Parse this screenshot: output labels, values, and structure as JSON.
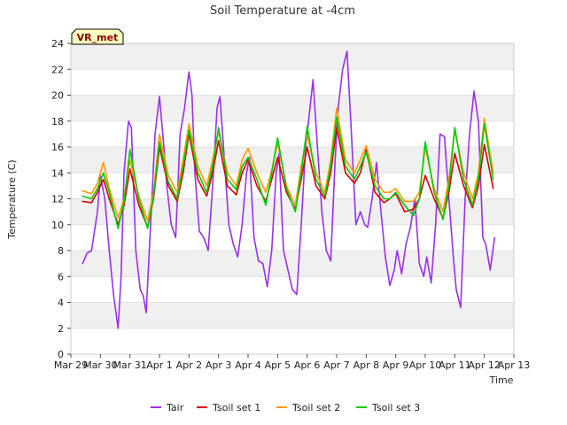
{
  "chart_data": {
    "type": "line",
    "title": "Soil Temperature at -4cm",
    "xlabel": "Time",
    "ylabel": "Temperature (C)",
    "ylim": [
      0,
      24
    ],
    "yticks": [
      0,
      2,
      4,
      6,
      8,
      10,
      12,
      14,
      16,
      18,
      20,
      22,
      24
    ],
    "xlim": [
      0,
      15
    ],
    "xticks": [
      {
        "pos": 0,
        "label": "Mar 29"
      },
      {
        "pos": 1,
        "label": "Mar 30"
      },
      {
        "pos": 2,
        "label": "Mar 31"
      },
      {
        "pos": 3,
        "label": "Apr 1"
      },
      {
        "pos": 4,
        "label": "Apr 2"
      },
      {
        "pos": 5,
        "label": "Apr 3"
      },
      {
        "pos": 6,
        "label": "Apr 4"
      },
      {
        "pos": 7,
        "label": "Apr 5"
      },
      {
        "pos": 8,
        "label": "Apr 6"
      },
      {
        "pos": 9,
        "label": "Apr 7"
      },
      {
        "pos": 10,
        "label": "Apr 8"
      },
      {
        "pos": 11,
        "label": "Apr 9"
      },
      {
        "pos": 12,
        "label": "Apr 10"
      },
      {
        "pos": 13,
        "label": "Apr 11"
      },
      {
        "pos": 14,
        "label": "Apr 12"
      },
      {
        "pos": 15,
        "label": "Apr 13"
      }
    ],
    "grid": "horizontal bands",
    "legend_position": "bottom",
    "annotation": "VR_met",
    "series": [
      {
        "name": "Tair",
        "color": "#9b30e8",
        "x": [
          0.4,
          0.55,
          0.7,
          0.9,
          1.0,
          1.15,
          1.3,
          1.45,
          1.6,
          1.7,
          1.8,
          1.95,
          2.05,
          2.2,
          2.35,
          2.45,
          2.55,
          2.7,
          2.85,
          3.0,
          3.15,
          3.25,
          3.4,
          3.55,
          3.7,
          3.85,
          4.0,
          4.1,
          4.2,
          4.35,
          4.5,
          4.65,
          4.8,
          4.95,
          5.05,
          5.2,
          5.35,
          5.5,
          5.65,
          5.8,
          5.95,
          6.05,
          6.2,
          6.35,
          6.5,
          6.65,
          6.8,
          6.95,
          7.05,
          7.2,
          7.35,
          7.5,
          7.65,
          7.8,
          7.95,
          8.05,
          8.2,
          8.35,
          8.5,
          8.65,
          8.8,
          8.95,
          9.05,
          9.2,
          9.35,
          9.5,
          9.65,
          9.8,
          9.95,
          10.05,
          10.2,
          10.35,
          10.5,
          10.65,
          10.8,
          10.95,
          11.05,
          11.2,
          11.35,
          11.5,
          11.65,
          11.8,
          11.95,
          12.05,
          12.2,
          12.35,
          12.5,
          12.65,
          12.8,
          12.95,
          13.05,
          13.2,
          13.35,
          13.5,
          13.65,
          13.8,
          13.95,
          14.05,
          14.2,
          14.35
        ],
        "y": [
          7.0,
          7.8,
          8.0,
          11.0,
          13.8,
          12.0,
          8.0,
          4.5,
          2.0,
          6.0,
          14.0,
          18.0,
          17.5,
          8.0,
          5.0,
          4.5,
          3.2,
          10.0,
          17.0,
          19.9,
          16.0,
          13.0,
          10.0,
          9.0,
          17.0,
          19.0,
          21.8,
          20.0,
          14.0,
          9.5,
          9.0,
          8.0,
          13.0,
          19.0,
          19.9,
          15.0,
          10.0,
          8.5,
          7.5,
          10.0,
          14.0,
          15.2,
          9.0,
          7.2,
          7.0,
          5.2,
          8.0,
          14.0,
          15.5,
          8.0,
          6.5,
          5.0,
          4.6,
          10.0,
          16.0,
          18.0,
          21.2,
          16.0,
          11.0,
          8.0,
          7.2,
          15.0,
          19.0,
          22.0,
          23.4,
          17.0,
          10.0,
          11.0,
          10.0,
          9.8,
          12.0,
          14.8,
          11.0,
          7.5,
          5.3,
          6.5,
          8.0,
          6.2,
          8.5,
          9.8,
          12.0,
          7.0,
          6.0,
          7.5,
          5.5,
          10.0,
          17.0,
          16.8,
          12.0,
          7.5,
          5.0,
          3.6,
          12.0,
          17.0,
          20.3,
          18.0,
          9.0,
          8.5,
          6.5,
          9.0
        ]
      },
      {
        "name": "Tsoil set 1",
        "color": "#dd0000",
        "x": [
          0.4,
          0.7,
          0.9,
          1.1,
          1.3,
          1.6,
          1.8,
          2.0,
          2.3,
          2.6,
          2.8,
          3.0,
          3.3,
          3.6,
          3.8,
          4.0,
          4.3,
          4.6,
          4.8,
          5.0,
          5.3,
          5.6,
          5.8,
          6.0,
          6.3,
          6.6,
          6.8,
          7.0,
          7.3,
          7.6,
          7.8,
          8.0,
          8.3,
          8.6,
          8.8,
          9.0,
          9.3,
          9.6,
          9.8,
          10.0,
          10.3,
          10.6,
          10.8,
          11.0,
          11.3,
          11.6,
          11.8,
          12.0,
          12.3,
          12.6,
          12.8,
          13.0,
          13.3,
          13.6,
          13.8,
          14.0,
          14.3
        ],
        "y": [
          11.8,
          11.7,
          12.5,
          13.5,
          12.0,
          10.0,
          11.5,
          14.3,
          11.5,
          9.8,
          12.0,
          16.0,
          13.0,
          11.8,
          14.0,
          17.0,
          13.5,
          12.2,
          14.0,
          16.5,
          13.0,
          12.3,
          14.0,
          15.0,
          13.0,
          11.8,
          13.5,
          15.2,
          12.5,
          11.2,
          13.5,
          16.0,
          13.0,
          12.0,
          14.0,
          17.5,
          14.0,
          13.2,
          14.0,
          15.8,
          12.5,
          11.7,
          12.0,
          12.4,
          11.0,
          11.2,
          12.0,
          13.8,
          12.0,
          10.5,
          12.5,
          15.5,
          13.0,
          11.3,
          13.0,
          16.2,
          12.8
        ]
      },
      {
        "name": "Tsoil set 2",
        "color": "#ff9900",
        "x": [
          0.4,
          0.7,
          0.9,
          1.1,
          1.3,
          1.6,
          1.8,
          2.0,
          2.3,
          2.6,
          2.8,
          3.0,
          3.3,
          3.6,
          3.8,
          4.0,
          4.3,
          4.6,
          4.8,
          5.0,
          5.3,
          5.6,
          5.8,
          6.0,
          6.3,
          6.6,
          6.8,
          7.0,
          7.3,
          7.6,
          7.8,
          8.0,
          8.3,
          8.6,
          8.8,
          9.0,
          9.3,
          9.6,
          9.8,
          10.0,
          10.3,
          10.6,
          10.8,
          11.0,
          11.3,
          11.6,
          11.8,
          12.0,
          12.3,
          12.6,
          12.8,
          13.0,
          13.3,
          13.6,
          13.8,
          14.0,
          14.3
        ],
        "y": [
          12.6,
          12.4,
          13.2,
          14.8,
          12.8,
          10.5,
          12.0,
          15.0,
          12.2,
          10.3,
          12.5,
          17.0,
          13.8,
          12.5,
          15.0,
          17.8,
          14.5,
          13.0,
          15.0,
          17.2,
          14.0,
          13.0,
          15.0,
          15.9,
          14.0,
          12.5,
          14.2,
          16.3,
          13.0,
          11.5,
          14.5,
          17.0,
          14.0,
          12.5,
          15.0,
          19.0,
          15.0,
          14.0,
          15.0,
          16.1,
          13.5,
          12.5,
          12.5,
          12.8,
          11.8,
          11.8,
          12.5,
          16.0,
          12.8,
          11.0,
          13.5,
          17.3,
          14.0,
          12.0,
          14.0,
          18.2,
          14.0
        ]
      },
      {
        "name": "Tsoil set 3",
        "color": "#00cc00",
        "x": [
          0.4,
          0.7,
          0.9,
          1.1,
          1.3,
          1.6,
          1.8,
          2.0,
          2.3,
          2.6,
          2.8,
          3.0,
          3.3,
          3.6,
          3.8,
          4.0,
          4.3,
          4.6,
          4.8,
          5.0,
          5.3,
          5.6,
          5.8,
          6.0,
          6.3,
          6.6,
          6.8,
          7.0,
          7.3,
          7.6,
          7.8,
          8.0,
          8.3,
          8.6,
          8.8,
          9.0,
          9.3,
          9.6,
          9.8,
          10.0,
          10.3,
          10.6,
          10.8,
          11.0,
          11.3,
          11.6,
          11.8,
          12.0,
          12.3,
          12.6,
          12.8,
          13.0,
          13.3,
          13.6,
          13.8,
          14.0,
          14.3
        ],
        "y": [
          12.2,
          12.0,
          12.8,
          14.0,
          12.5,
          9.7,
          11.8,
          15.8,
          12.0,
          9.7,
          12.2,
          16.4,
          13.3,
          12.0,
          14.5,
          17.3,
          14.0,
          12.5,
          14.5,
          17.5,
          13.5,
          12.7,
          14.5,
          15.2,
          13.5,
          11.5,
          14.0,
          16.7,
          12.8,
          11.0,
          14.0,
          17.6,
          13.5,
          12.2,
          14.5,
          18.3,
          14.5,
          13.5,
          14.5,
          15.6,
          13.0,
          12.0,
          12.0,
          12.5,
          11.5,
          10.7,
          12.0,
          16.4,
          12.5,
          10.4,
          13.0,
          17.5,
          13.5,
          11.5,
          13.5,
          17.8,
          13.5
        ]
      }
    ]
  }
}
